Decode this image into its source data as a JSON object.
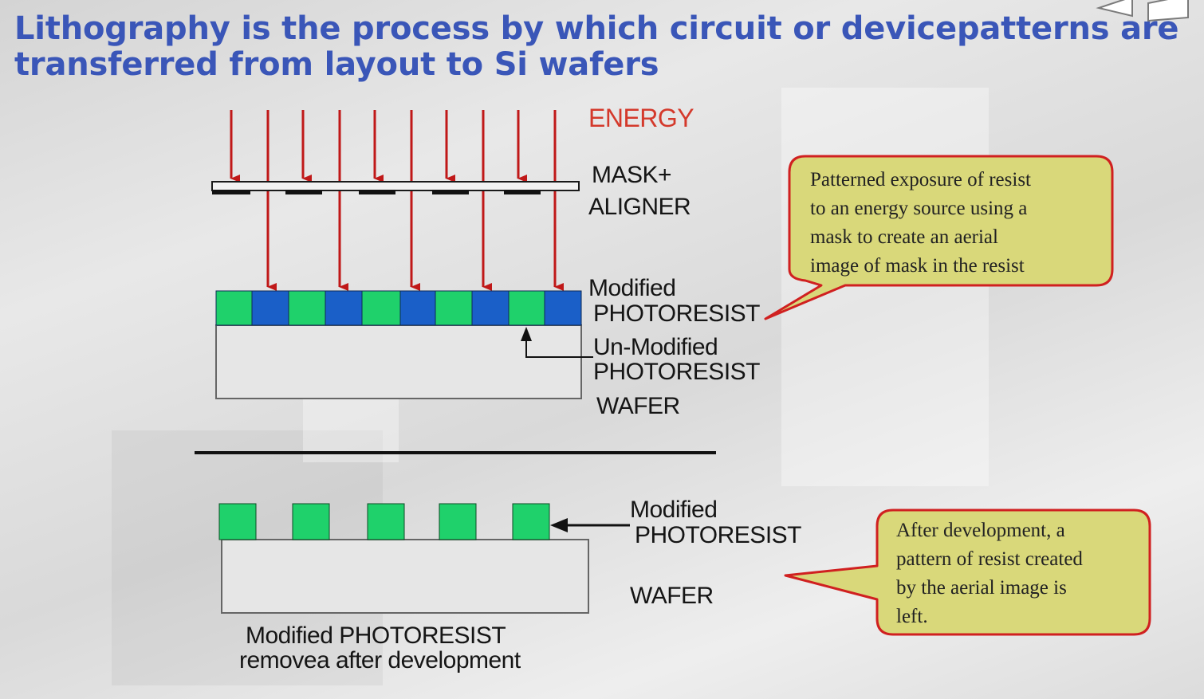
{
  "title": {
    "line1": "Lithography is the process by which circuit or devicepatterns are",
    "line2": "transferred from layout to Si wafers"
  },
  "labels": {
    "energy": "ENERGY",
    "mask_line1": "MASK+",
    "mask_line2": "ALIGNER",
    "modified_top_line1": "Modified",
    "modified_top_line2": "PHOTORESIST",
    "unmodified_line1": "Un-Modified",
    "unmodified_line2": "PHOTORESIST",
    "wafer_top": "WAFER",
    "modified_bottom_line1": "Modified",
    "modified_bottom_line2": "PHOTORESIST",
    "wafer_bottom": "WAFER",
    "caption_line1": "Modified PHOTORESIST",
    "caption_line2": "removea after development"
  },
  "callouts": {
    "exposure": [
      "Patterned exposure of resist",
      "to an energy source using a",
      "mask to create an aerial",
      "image of mask in the resist"
    ],
    "development": [
      "After development, a",
      "pattern of resist created",
      "by the aerial image is",
      "left."
    ]
  },
  "colors": {
    "title": "#3a56b8",
    "energy": "#d4392b",
    "arrow": "#c01818",
    "resist_modified": "#1fd16b",
    "resist_unmodified": "#1a5fc8",
    "callout_fill": "#d9d87a",
    "callout_border": "#d02020"
  }
}
